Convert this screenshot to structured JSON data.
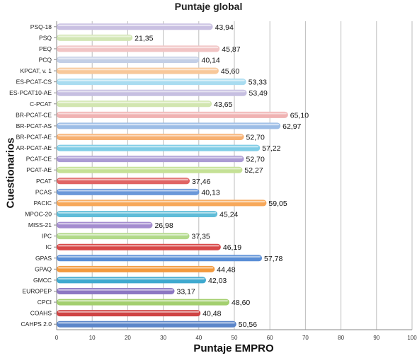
{
  "chart_data": {
    "type": "bar",
    "orientation": "horizontal",
    "title": "Puntaje global",
    "xlabel": "Puntaje EMPRO",
    "ylabel": "Cuestionarios",
    "xlim": [
      0,
      100
    ],
    "xticks": [
      0,
      10,
      20,
      30,
      40,
      50,
      60,
      70,
      80,
      90,
      100
    ],
    "grid": "vertical",
    "categories": [
      "PSQ-18",
      "PSQ",
      "PEQ",
      "PCQ",
      "KPCAT, v. 1",
      "ES-PCAT-CS",
      "ES-PCAT10-AE",
      "C-PCAT",
      "BR-PCAT-CE",
      "BR-PCAT-AS",
      "BR-PCAT-AE",
      "AR-PCAT-AE",
      "PCAT-CE",
      "PCAT-AE",
      "PCAT",
      "PCAS",
      "PACIC",
      "MPOC-20",
      "MISS-21",
      "IPC",
      "IC",
      "GPAS",
      "GPAQ",
      "GMCC",
      "EUROPEP",
      "CPCI",
      "COAHS",
      "CAHPS 2.0"
    ],
    "values": [
      43.94,
      21.35,
      45.87,
      40.14,
      45.6,
      53.33,
      53.49,
      43.65,
      65.1,
      62.97,
      52.7,
      57.22,
      52.7,
      52.27,
      37.46,
      40.13,
      59.05,
      45.24,
      26.98,
      37.35,
      46.19,
      57.78,
      44.48,
      42.03,
      33.17,
      48.6,
      40.48,
      50.56
    ],
    "value_labels": [
      "43,94",
      "21,35",
      "45,87",
      "40,14",
      "45,60",
      "53,33",
      "53,49",
      "43,65",
      "65,10",
      "62,97",
      "52,70",
      "57,22",
      "52,70",
      "52,27",
      "37,46",
      "40,13",
      "59,05",
      "45,24",
      "26,98",
      "37,35",
      "46,19",
      "57,78",
      "44,48",
      "42,03",
      "33,17",
      "48,60",
      "40,48",
      "50,56"
    ],
    "colors": [
      "#c9c0e2",
      "#d2e6b4",
      "#f1c4c4",
      "#c3cfe6",
      "#f8c89a",
      "#a9dcf0",
      "#c6bfe1",
      "#d2e6b0",
      "#f0b2b2",
      "#9dbde6",
      "#f7b071",
      "#80cde6",
      "#ab9bd4",
      "#c5e196",
      "#e06464",
      "#6b98d9",
      "#f7a85a",
      "#5fbcd8",
      "#a48ccf",
      "#b2d98a",
      "#d84848",
      "#5a8ed6",
      "#f39a3e",
      "#3fa9cf",
      "#8d78c3",
      "#a3cf6e",
      "#cf4444",
      "#5b85c9"
    ]
  }
}
